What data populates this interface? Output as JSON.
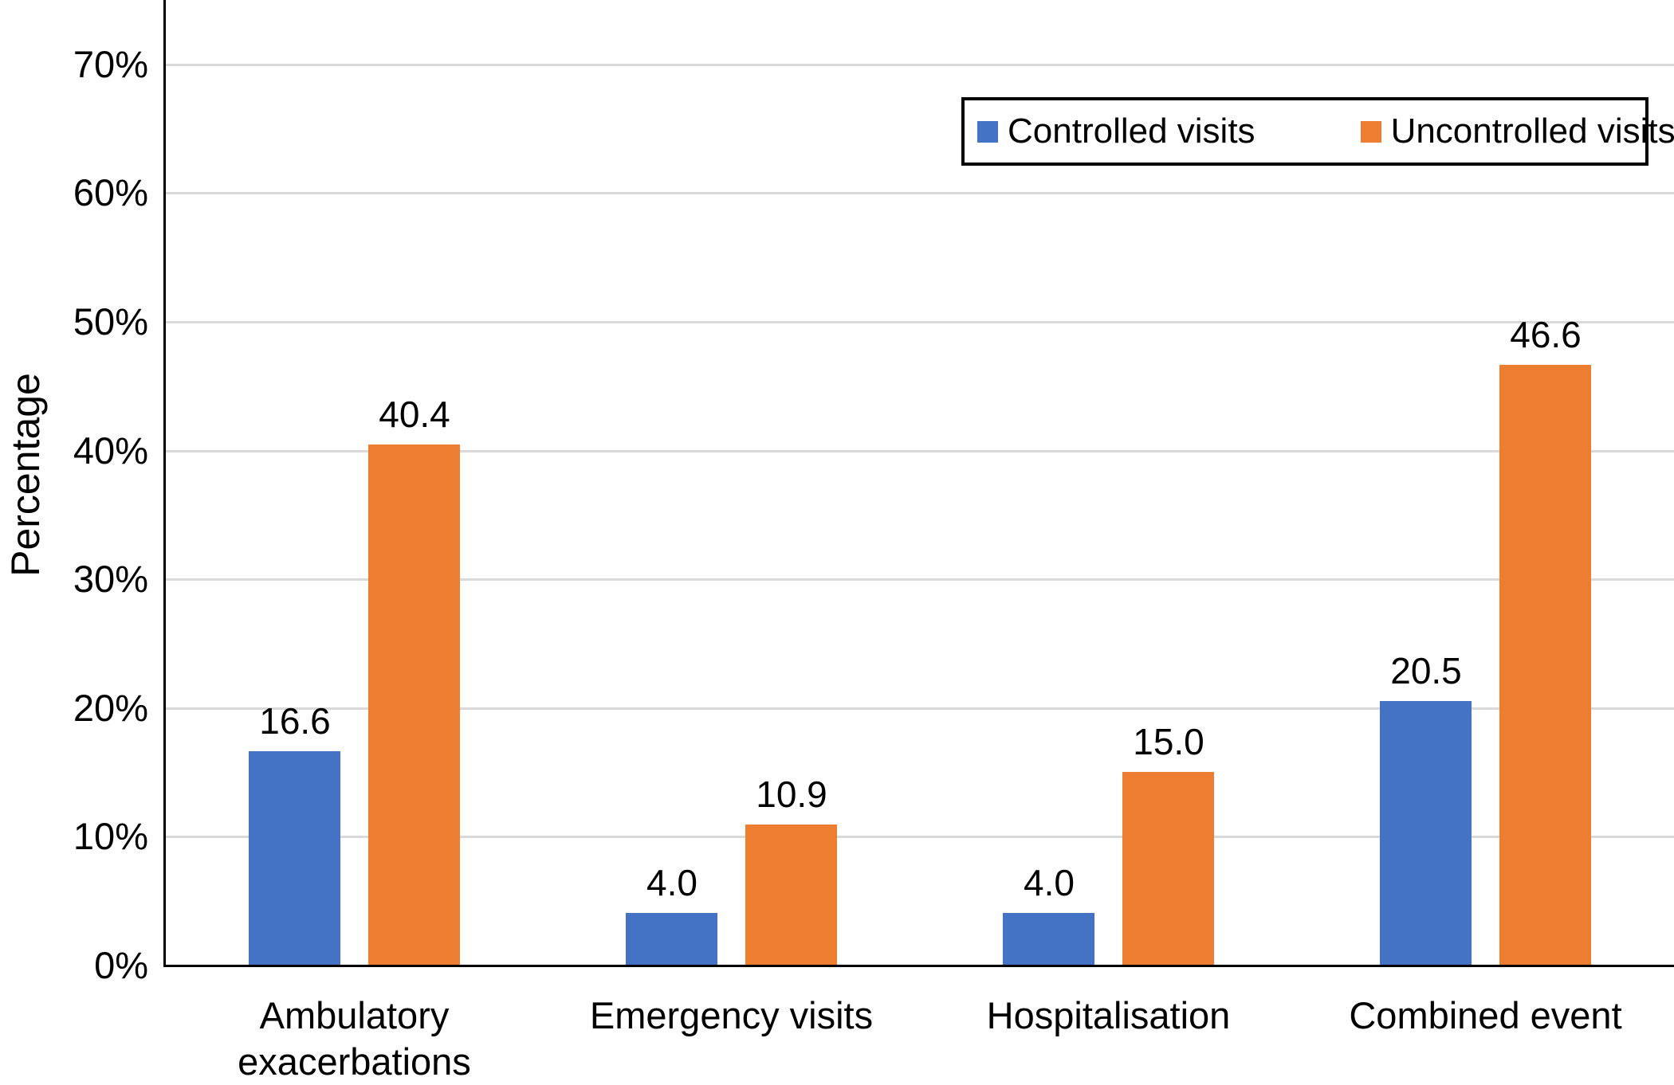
{
  "chart_data": {
    "type": "bar",
    "title": "",
    "xlabel": "",
    "ylabel": "Percentage",
    "categories": [
      "Ambulatory exacerbations",
      "Emergency visits",
      "Hospitalisation",
      "Combined event"
    ],
    "series": [
      {
        "name": "Controlled visits",
        "color": "#4472C4",
        "values": [
          16.6,
          4.0,
          4.0,
          20.5
        ]
      },
      {
        "name": "Uncontrolled visits",
        "color": "#ED7D31",
        "values": [
          40.4,
          10.9,
          15.0,
          46.6
        ]
      }
    ],
    "value_labels": [
      [
        "16.6",
        "4.0",
        "4.0",
        "20.5"
      ],
      [
        "40.4",
        "10.9",
        "15.0",
        "46.6"
      ]
    ],
    "ylim": [
      0,
      75
    ],
    "ytick_step": 10,
    "ytick_labels": [
      "0%",
      "10%",
      "20%",
      "30%",
      "40%",
      "50%",
      "60%",
      "70%"
    ],
    "grid": "horizontal",
    "gridline_color": "#D9D9D9",
    "axis_color": "#000000",
    "legend": {
      "position": "top-right",
      "border_color": "#000000",
      "entries": [
        "Controlled visits",
        "Uncontrolled visits"
      ]
    }
  }
}
